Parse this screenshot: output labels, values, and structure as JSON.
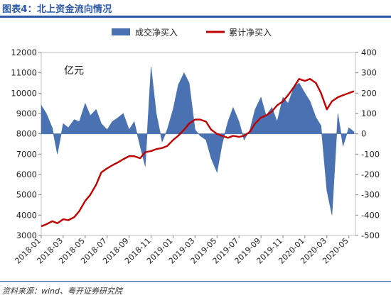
{
  "figure": {
    "title": "图表4：北上资金流向情况",
    "source": "资料来源：wind、粤开证券研究院"
  },
  "chart_data": {
    "type": "line",
    "unit_label": "亿元",
    "colors": {
      "area": "#4a72b2",
      "line": "#c00000"
    },
    "legend": {
      "position": "top",
      "area_label": "成交净买入",
      "line_label": "累计净买入"
    },
    "x": {
      "start": "2018-01",
      "end": "2020-05",
      "tick_labels": [
        "2018-01",
        "2018-03",
        "2018-05",
        "2018-07",
        "2018-09",
        "2018-11",
        "2019-01",
        "2019-03",
        "2019-05",
        "2019-07",
        "2019-09",
        "2019-11",
        "2020-01",
        "2020-03",
        "2020-05"
      ]
    },
    "y_left": {
      "range": [
        3000,
        12000
      ],
      "ticks": [
        "3000",
        "4000",
        "5000",
        "6000",
        "7000",
        "8000",
        "9000",
        "10000",
        "11000",
        "12000"
      ]
    },
    "y_right": {
      "range": [
        -500,
        400
      ],
      "ticks": [
        "-500",
        "-400",
        "-300",
        "-200",
        "-100",
        "0",
        "100",
        "200",
        "300",
        "400"
      ]
    },
    "series": [
      {
        "name": "成交净买入",
        "axis": "right",
        "kind": "area",
        "points": [
          [
            "2018-01",
            140
          ],
          [
            "2018-01-15",
            100
          ],
          [
            "2018-02",
            30
          ],
          [
            "2018-02-15",
            -100
          ],
          [
            "2018-03",
            50
          ],
          [
            "2018-03-15",
            30
          ],
          [
            "2018-04",
            70
          ],
          [
            "2018-04-15",
            60
          ],
          [
            "2018-05",
            150
          ],
          [
            "2018-05-15",
            90
          ],
          [
            "2018-06",
            120
          ],
          [
            "2018-06-15",
            50
          ],
          [
            "2018-07",
            20
          ],
          [
            "2018-07-15",
            60
          ],
          [
            "2018-08",
            80
          ],
          [
            "2018-08-15",
            100
          ],
          [
            "2018-09",
            20
          ],
          [
            "2018-09-15",
            60
          ],
          [
            "2018-10",
            -60
          ],
          [
            "2018-10-15",
            -160
          ],
          [
            "2018-11",
            330
          ],
          [
            "2018-11-15",
            100
          ],
          [
            "2018-12",
            -40
          ],
          [
            "2018-12-15",
            20
          ],
          [
            "2019-01",
            120
          ],
          [
            "2019-01-15",
            240
          ],
          [
            "2019-02",
            300
          ],
          [
            "2019-02-15",
            250
          ],
          [
            "2019-03",
            20
          ],
          [
            "2019-03-15",
            -10
          ],
          [
            "2019-04",
            -30
          ],
          [
            "2019-04-15",
            -120
          ],
          [
            "2019-05",
            -190
          ],
          [
            "2019-05-15",
            -50
          ],
          [
            "2019-06",
            60
          ],
          [
            "2019-06-15",
            130
          ],
          [
            "2019-07",
            60
          ],
          [
            "2019-07-15",
            -30
          ],
          [
            "2019-08",
            20
          ],
          [
            "2019-08-15",
            120
          ],
          [
            "2019-09",
            180
          ],
          [
            "2019-09-15",
            90
          ],
          [
            "2019-10",
            130
          ],
          [
            "2019-10-15",
            60
          ],
          [
            "2019-11",
            180
          ],
          [
            "2019-11-15",
            150
          ],
          [
            "2019-12",
            230
          ],
          [
            "2019-12-15",
            250
          ],
          [
            "2020-01",
            200
          ],
          [
            "2020-01-15",
            160
          ],
          [
            "2020-02",
            80
          ],
          [
            "2020-02-15",
            40
          ],
          [
            "2020-03",
            -280
          ],
          [
            "2020-03-15",
            -400
          ],
          [
            "2020-04",
            100
          ],
          [
            "2020-04-15",
            -60
          ],
          [
            "2020-05",
            30
          ],
          [
            "2020-05-15",
            10
          ]
        ]
      },
      {
        "name": "累计净买入",
        "axis": "left",
        "kind": "line",
        "points": [
          [
            "2018-01",
            3450
          ],
          [
            "2018-01-15",
            3550
          ],
          [
            "2018-02",
            3700
          ],
          [
            "2018-02-15",
            3600
          ],
          [
            "2018-03",
            3800
          ],
          [
            "2018-03-15",
            3750
          ],
          [
            "2018-04",
            3900
          ],
          [
            "2018-04-15",
            4200
          ],
          [
            "2018-05",
            4700
          ],
          [
            "2018-05-15",
            5000
          ],
          [
            "2018-06",
            5500
          ],
          [
            "2018-06-15",
            6100
          ],
          [
            "2018-07",
            6300
          ],
          [
            "2018-07-15",
            6450
          ],
          [
            "2018-08",
            6600
          ],
          [
            "2018-08-15",
            6750
          ],
          [
            "2018-09",
            6900
          ],
          [
            "2018-09-15",
            6900
          ],
          [
            "2018-10",
            6800
          ],
          [
            "2018-10-15",
            7100
          ],
          [
            "2018-11",
            7150
          ],
          [
            "2018-11-15",
            7250
          ],
          [
            "2018-12",
            7300
          ],
          [
            "2018-12-15",
            7400
          ],
          [
            "2019-01",
            7700
          ],
          [
            "2019-01-15",
            7900
          ],
          [
            "2019-02",
            8200
          ],
          [
            "2019-02-15",
            8500
          ],
          [
            "2019-03",
            8700
          ],
          [
            "2019-03-15",
            8700
          ],
          [
            "2019-04",
            8600
          ],
          [
            "2019-04-15",
            8200
          ],
          [
            "2019-05",
            8000
          ],
          [
            "2019-05-15",
            7900
          ],
          [
            "2019-06",
            7800
          ],
          [
            "2019-06-15",
            7900
          ],
          [
            "2019-07",
            7850
          ],
          [
            "2019-07-15",
            7900
          ],
          [
            "2019-08",
            8100
          ],
          [
            "2019-08-15",
            8500
          ],
          [
            "2019-09",
            8800
          ],
          [
            "2019-09-15",
            8900
          ],
          [
            "2019-10",
            9100
          ],
          [
            "2019-10-15",
            9400
          ],
          [
            "2019-11",
            9600
          ],
          [
            "2019-11-15",
            9900
          ],
          [
            "2019-12",
            10300
          ],
          [
            "2019-12-15",
            10700
          ],
          [
            "2020-01",
            10600
          ],
          [
            "2020-01-15",
            10700
          ],
          [
            "2020-02",
            10500
          ],
          [
            "2020-02-15",
            10000
          ],
          [
            "2020-03",
            9200
          ],
          [
            "2020-03-15",
            9600
          ],
          [
            "2020-04",
            9800
          ],
          [
            "2020-04-15",
            9900
          ],
          [
            "2020-05",
            10000
          ],
          [
            "2020-05-15",
            10100
          ]
        ]
      }
    ]
  }
}
